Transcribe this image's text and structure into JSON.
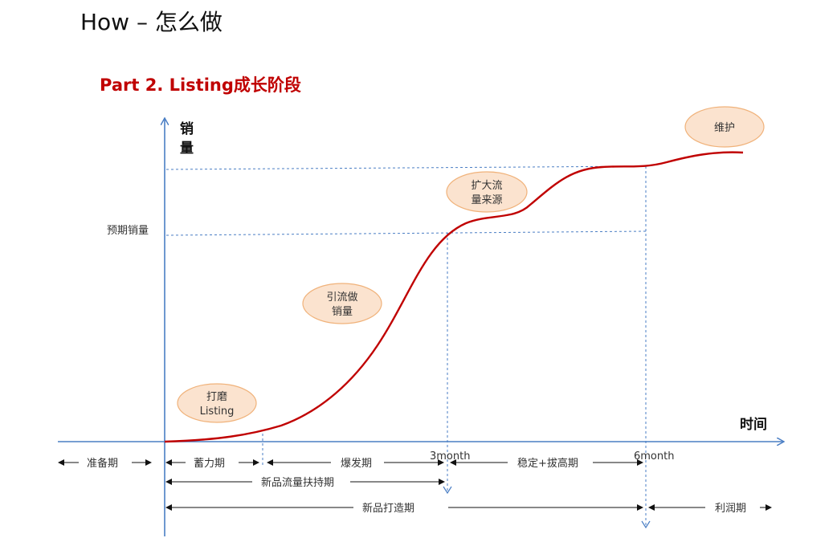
{
  "header": {
    "title": "How – 怎么做",
    "subtitle": "Part 2. Listing成长阶段"
  },
  "axes": {
    "y_label_1": "销",
    "y_label_2": "量",
    "x_label": "时间",
    "expected_sales": "预期销量"
  },
  "bubbles": {
    "polish_1": "打磨",
    "polish_2": "Listing",
    "traffic_1": "引流做",
    "traffic_2": "销量",
    "expand_1": "扩大流",
    "expand_2": "量来源",
    "maintain": "维护"
  },
  "ticks": {
    "m3": "3month",
    "m6": "6month"
  },
  "phases": {
    "prepare": "准备期",
    "accumulate": "蓄力期",
    "burst": "爆发期",
    "stabilize": "稳定+拔高期",
    "support": "新品流量扶持期",
    "build": "新品打造期",
    "profit": "利润期"
  },
  "colors": {
    "axis": "#4a7ec4",
    "curve": "#c00000",
    "bubble_fill": "#fbe3cf",
    "bubble_stroke": "#f0b27a",
    "subtitle": "#c00000"
  }
}
